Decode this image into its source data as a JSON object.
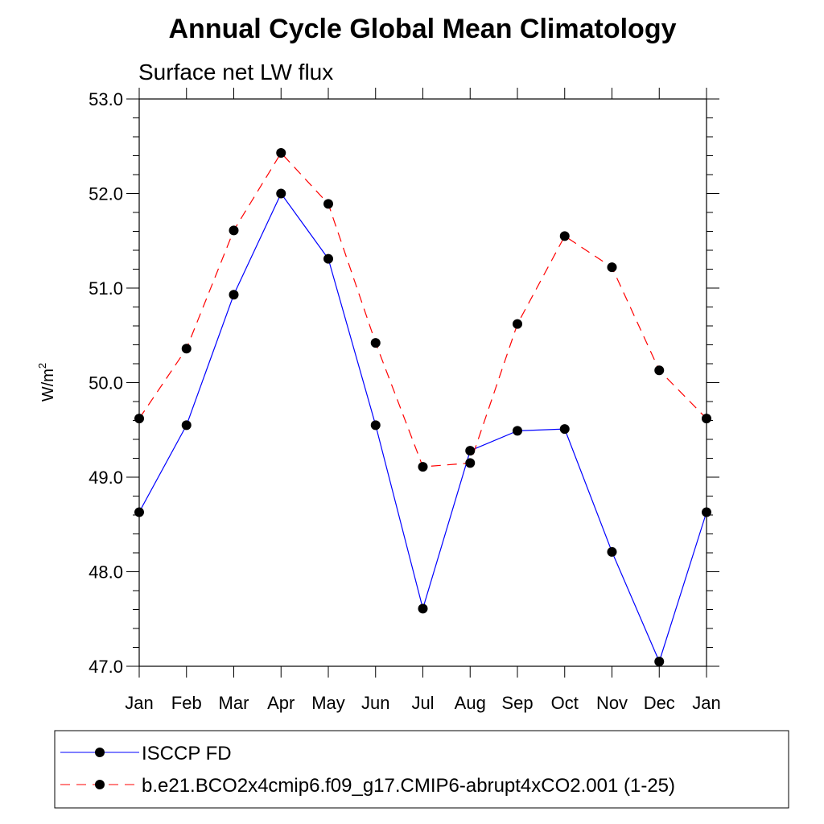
{
  "chart_data": {
    "type": "line",
    "title": "Annual Cycle Global Mean Climatology",
    "subtitle": "Surface net LW flux",
    "ylabel": "W/m",
    "ylabel_sup": "2",
    "xlabel": "",
    "categories": [
      "Jan",
      "Feb",
      "Mar",
      "Apr",
      "May",
      "Jun",
      "Jul",
      "Aug",
      "Sep",
      "Oct",
      "Nov",
      "Dec",
      "Jan"
    ],
    "ylim": [
      47.0,
      53.0
    ],
    "yticks": [
      "47.0",
      "48.0",
      "49.0",
      "50.0",
      "51.0",
      "52.0",
      "53.0"
    ],
    "series": [
      {
        "name": "ISCCP FD",
        "color": "#0000ff",
        "dash": "solid",
        "values": [
          48.63,
          49.55,
          50.93,
          52.0,
          51.31,
          49.55,
          47.61,
          49.28,
          49.49,
          49.51,
          48.21,
          47.05,
          48.63
        ]
      },
      {
        "name": "b.e21.BCO2x4cmip6.f09_g17.CMIP6-abrupt4xCO2.001 (1-25)",
        "color": "#ff0000",
        "dash": "dashed",
        "values": [
          49.62,
          50.36,
          51.61,
          52.43,
          51.89,
          50.42,
          49.11,
          49.15,
          50.62,
          51.55,
          51.22,
          50.13,
          49.62
        ]
      }
    ]
  }
}
